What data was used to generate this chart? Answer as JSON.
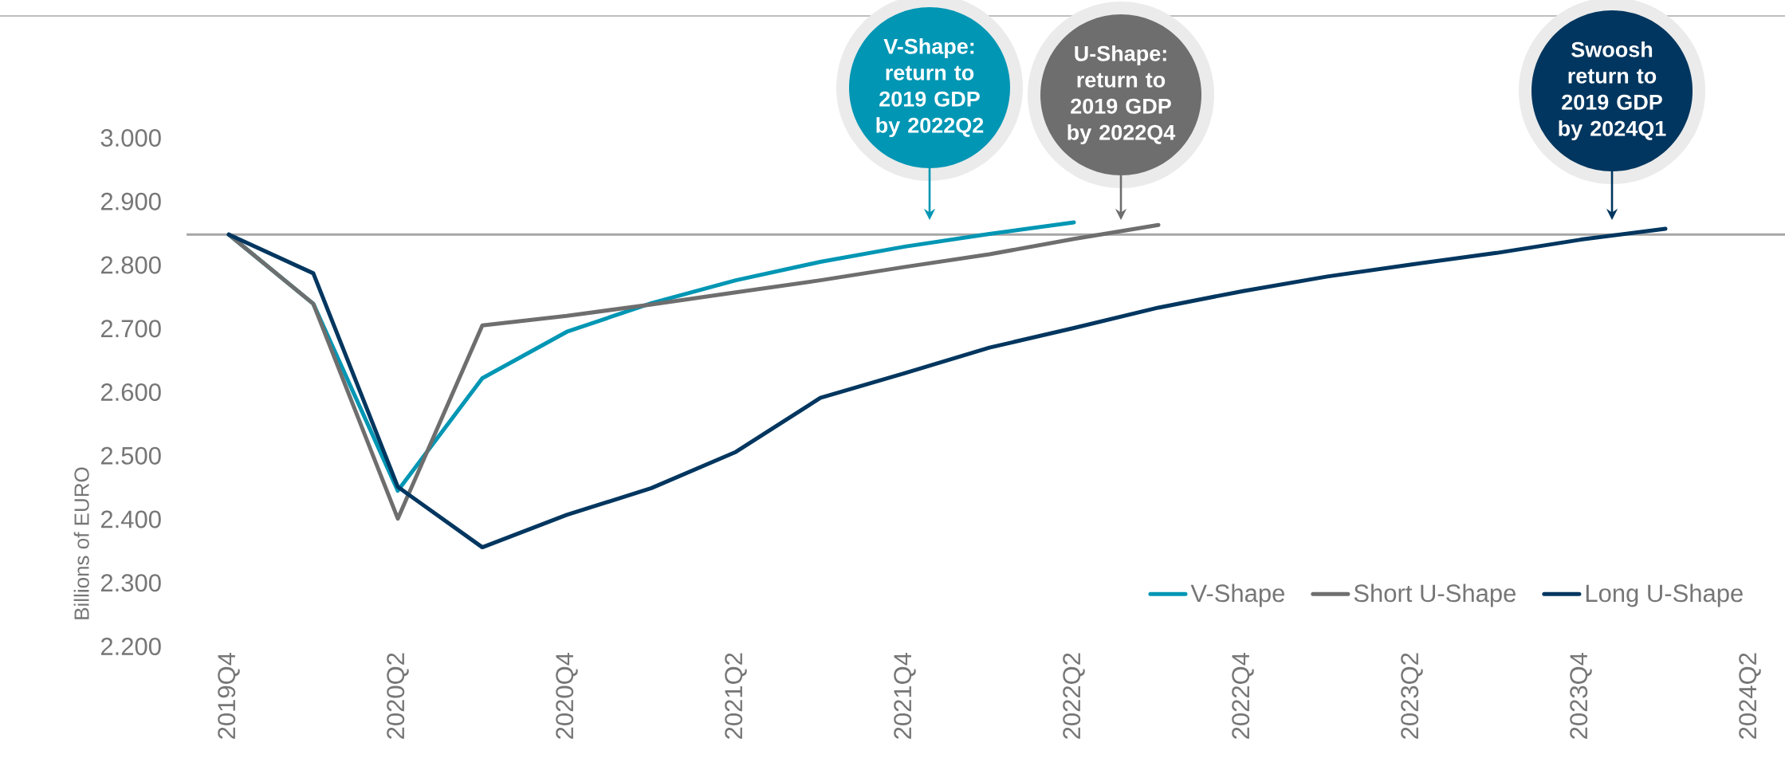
{
  "chart_data": {
    "type": "line",
    "ylabel": "Billions of EURO",
    "categories": [
      "2019Q4",
      null,
      "2020Q2",
      null,
      "2020Q4",
      null,
      "2021Q2",
      null,
      "2021Q4",
      null,
      "2022Q2",
      null,
      "2022Q4",
      null,
      "2023Q2",
      null,
      "2023Q4",
      null,
      "2024Q2"
    ],
    "series": [
      {
        "name": "V-Shape",
        "color": "#0096B4",
        "values": [
          2848,
          2739,
          2445,
          2622,
          2695,
          2740,
          2776,
          2805,
          2829,
          2849,
          2867,
          null,
          null,
          null,
          null,
          null,
          null,
          null,
          null
        ]
      },
      {
        "name": "Short U-Shape",
        "color": "#6D6E6D",
        "values": [
          2848,
          2739,
          2401,
          2705,
          2720,
          2738,
          2757,
          2776,
          2797,
          2817,
          2841,
          2863,
          null,
          null,
          null,
          null,
          null,
          null,
          null
        ]
      },
      {
        "name": "Long U-Shape",
        "color": "#00365F",
        "values": [
          2848,
          2787,
          2451,
          2356,
          2407,
          2449,
          2506,
          2591,
          2630,
          2670,
          2701,
          2733,
          2759,
          2782,
          2801,
          2819,
          2840,
          2857,
          null
        ]
      }
    ],
    "ylim": [
      2200,
      3000
    ],
    "yticks": [
      {
        "value": 2200,
        "label": "2.200"
      },
      {
        "value": 2300,
        "label": "2.300"
      },
      {
        "value": 2400,
        "label": "2.400"
      },
      {
        "value": 2500,
        "label": "2.500"
      },
      {
        "value": 2600,
        "label": "2.600"
      },
      {
        "value": 2700,
        "label": "2.700"
      },
      {
        "value": 2800,
        "label": "2.800"
      },
      {
        "value": 2900,
        "label": "2.900"
      },
      {
        "value": 3000,
        "label": "3.000"
      }
    ],
    "ref_lines": [
      {
        "axis": "y",
        "value": 2848,
        "color": "#A6A6A6"
      }
    ],
    "legend": "bottom right",
    "marker": "none",
    "line_style": "solid",
    "annotations": [
      "V-Shape: return to 2019 GDP by 2022Q2",
      "U-Shape: return to 2019 GDP by 2022Q4",
      "Swoosh return to 2019 GDP by 2024Q1"
    ]
  }
}
